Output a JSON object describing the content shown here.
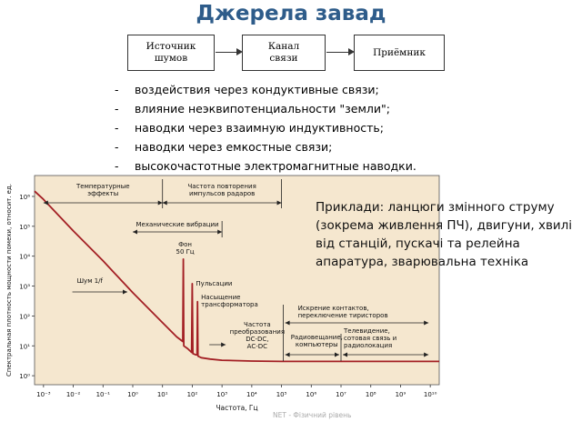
{
  "title": "Джерела завад",
  "block_diagram": {
    "source": "Источник\nшумов",
    "channel": "Канал\nсвязи",
    "receiver": "Приёмник"
  },
  "paths": [
    "воздействия через кондуктивные связи;",
    "влияние неэквипотенциальности \"земли\";",
    "наводки через взаимную индуктивность;",
    "наводки через емкостные связи;",
    "высокочастотные электромагнитные наводки."
  ],
  "examples_text": "Приклади: ланцюги змінного струму (зокрема живлення ПЧ), двигуни, хвилі від станцій, пускачі та релейна апаратура, зварювальна техніка",
  "footer": "NET - Фізичний рівень",
  "chart_data": {
    "type": "line",
    "xlabel": "Частота, Гц",
    "ylabel": "Спектральная плотность мощности помехи, относит. ед.",
    "x_scale": "log",
    "y_scale": "log",
    "x_ticks": [
      "10⁻³",
      "10⁻²",
      "10⁻¹",
      "10⁰",
      "10¹",
      "10²",
      "10³",
      "10⁴",
      "10⁵",
      "10⁶",
      "10⁷",
      "10⁸",
      "10⁹",
      "10¹⁰"
    ],
    "y_ticks": [
      "10⁰",
      "10¹",
      "10²",
      "10³",
      "10⁴",
      "10⁵",
      "10⁶"
    ],
    "xlim": [
      0.0005,
      20000000000
    ],
    "ylim": [
      0.5,
      5000000
    ],
    "background_color": "#f5e7cf",
    "line_color": "#a31f24",
    "series": [
      {
        "x": [
          0.0005,
          0.001,
          0.01,
          0.1,
          1,
          10,
          30,
          48,
          50,
          52,
          70,
          95,
          100,
          105,
          130,
          145,
          150,
          155,
          200,
          400,
          1000,
          10000,
          100000,
          20000000000
        ],
        "y": [
          1500000,
          800000,
          70000,
          7000,
          600,
          60,
          20,
          14,
          8000,
          10,
          8,
          6,
          1200,
          5.5,
          5,
          5,
          300,
          4.5,
          4,
          3.6,
          3.3,
          3.1,
          3.0,
          3.0
        ]
      }
    ],
    "annotations": [
      {
        "text": "Температурные\nэффекты",
        "x_from": 0.001,
        "x_to": 10,
        "y": 1000000
      },
      {
        "text": "Частота повторения\nимпульсов радаров",
        "x_from": 10,
        "x_to": 100000,
        "y": 1000000
      },
      {
        "text": "Механические вибрации",
        "x_from": 1,
        "x_to": 1000,
        "y": 150000
      },
      {
        "text": "Фон\n50 Гц",
        "x": 50,
        "y": 9000
      },
      {
        "text": "Шум 1/f",
        "x_from": 0.01,
        "x_to": 1,
        "y": 1000
      },
      {
        "text": "Пульсации",
        "x": 100,
        "y": 1500
      },
      {
        "text": "Насыщение\nтрансформатора",
        "x": 150,
        "y": 400
      },
      {
        "text": "Частота\nпреобразования\nDC-DC,\nAC-DC",
        "x_from": 1000,
        "x_to": 100000,
        "y": 10
      },
      {
        "text": "Искрение контактов,\nпереключение тиристоров",
        "x_from": 100000,
        "x_to": 10000000000,
        "y": 110
      },
      {
        "text": "Радиовещание,\nкомпьютеры",
        "x_from": 100000,
        "x_to": 10000000,
        "y": 10
      },
      {
        "text": "Телевидение,\nсотовая связь и\nрадиолокация",
        "x_from": 10000000,
        "x_to": 10000000000,
        "y": 10
      }
    ]
  }
}
